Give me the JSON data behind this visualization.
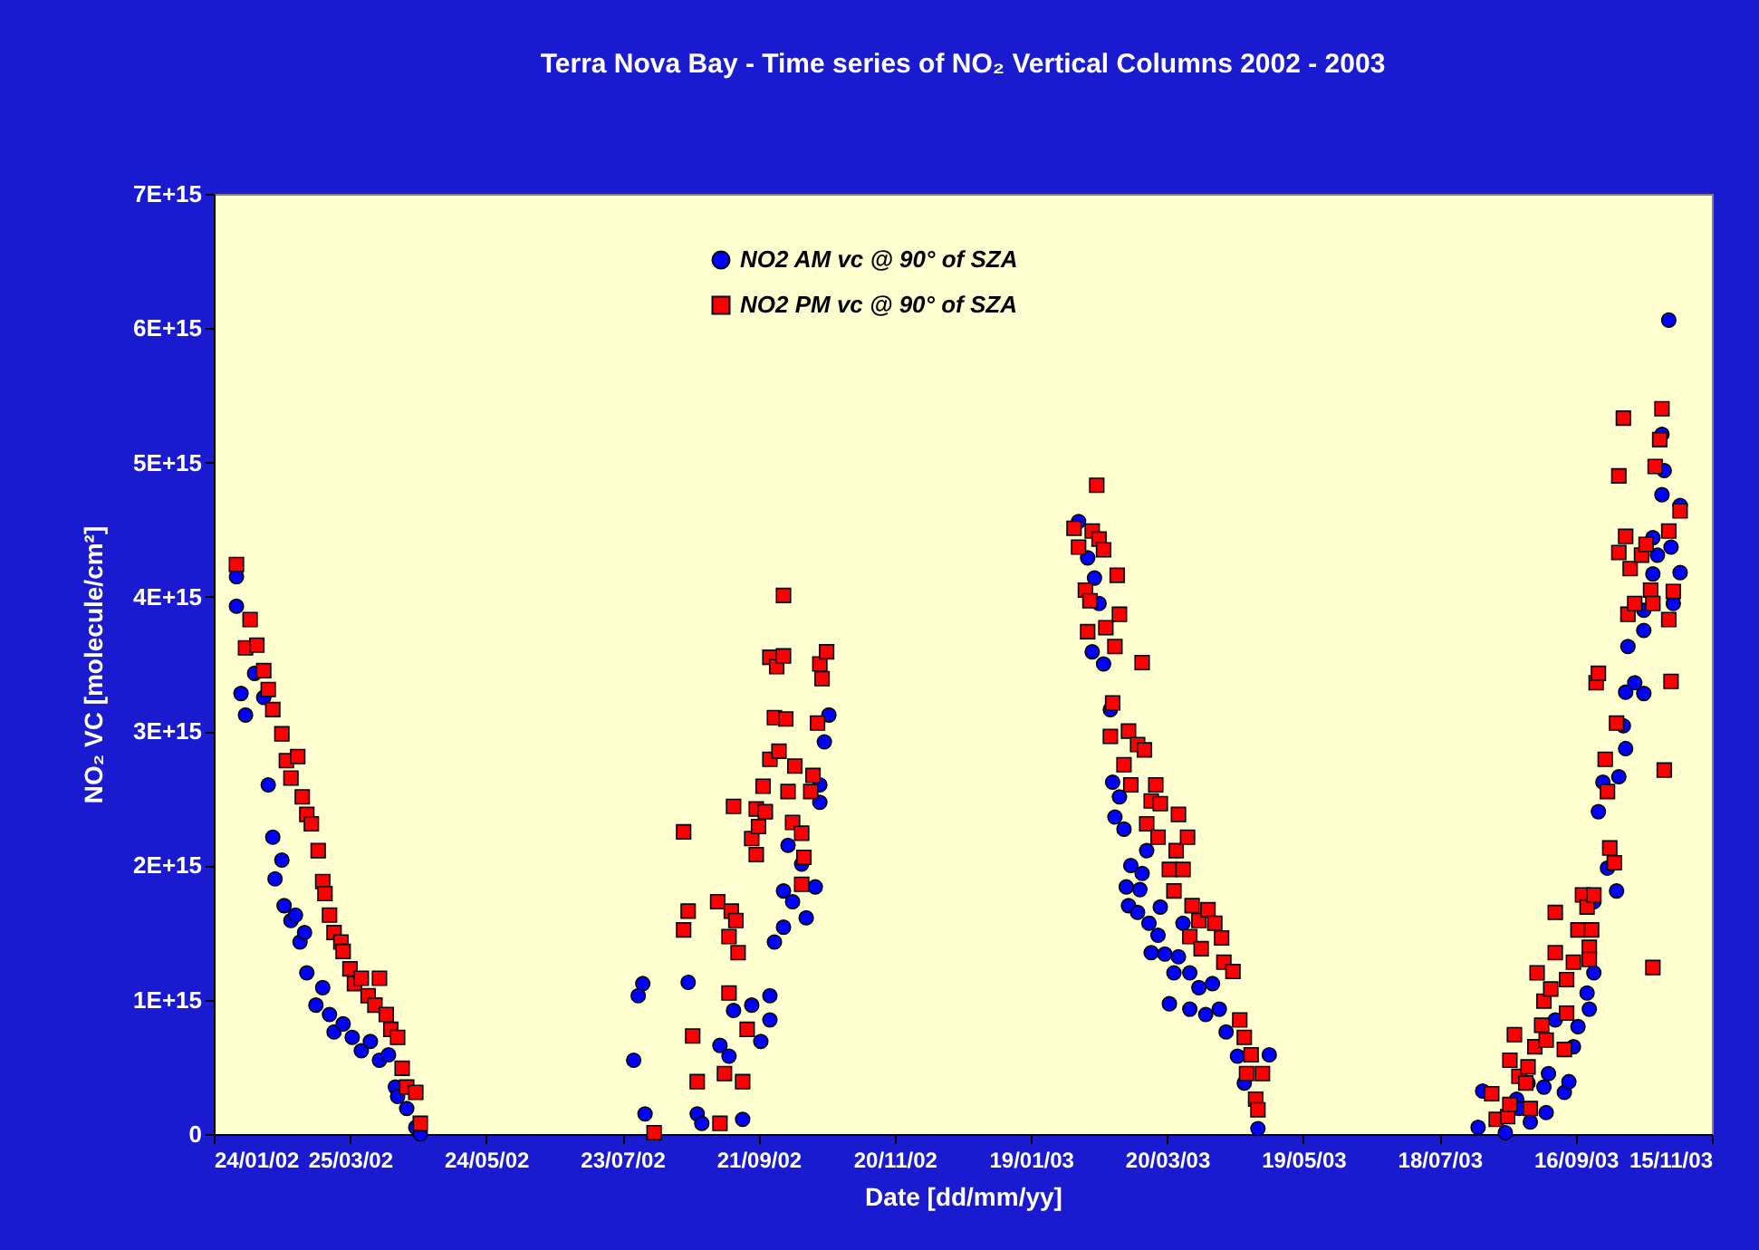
{
  "chart_data": {
    "type": "scatter",
    "title": "Terra Nova Bay - Time series of NO₂ Vertical Columns 2002 - 2003",
    "xlabel": "Date [dd/mm/yy]",
    "ylabel": "NO₂ VC [molecule/cm²]",
    "xlim": [
      "2002-01-24",
      "2003-11-15"
    ],
    "xticks": [
      {
        "value": "2002-01-24",
        "label": "24/01/02"
      },
      {
        "value": "2002-03-25",
        "label": "25/03/02"
      },
      {
        "value": "2002-05-24",
        "label": "24/05/02"
      },
      {
        "value": "2002-07-23",
        "label": "23/07/02"
      },
      {
        "value": "2002-09-21",
        "label": "21/09/02"
      },
      {
        "value": "2002-11-20",
        "label": "20/11/02"
      },
      {
        "value": "2003-01-19",
        "label": "19/01/03"
      },
      {
        "value": "2003-03-20",
        "label": "20/03/03"
      },
      {
        "value": "2003-05-19",
        "label": "19/05/03"
      },
      {
        "value": "2003-07-18",
        "label": "18/07/03"
      },
      {
        "value": "2003-09-16",
        "label": "16/09/03"
      },
      {
        "value": "2003-11-15",
        "label": "15/11/03"
      }
    ],
    "ylim": [
      0,
      7000000000000000.0
    ],
    "yticks": [
      {
        "value": 0,
        "label": "0"
      },
      {
        "value": 1000000000000000.0,
        "label": "1E+15"
      },
      {
        "value": 2000000000000000.0,
        "label": "2E+15"
      },
      {
        "value": 3000000000000000.0,
        "label": "3E+15"
      },
      {
        "value": 4000000000000000.0,
        "label": "4E+15"
      },
      {
        "value": 5000000000000000.0,
        "label": "5E+15"
      },
      {
        "value": 6000000000000000.0,
        "label": "6E+15"
      },
      {
        "value": 7000000000000000.0,
        "label": "7E+15"
      }
    ],
    "grid": false,
    "legend": "top",
    "series": [
      {
        "name": "NO2 AM vc @ 90° of SZA",
        "color": "#0000ff",
        "marker": "circle",
        "x": [
          "2002-02-03",
          "2002-02-03",
          "2002-02-05",
          "2002-02-07",
          "2002-02-11",
          "2002-02-15",
          "2002-02-17",
          "2002-02-19",
          "2002-02-20",
          "2002-02-23",
          "2002-02-24",
          "2002-02-27",
          "2002-03-01",
          "2002-03-03",
          "2002-03-05",
          "2002-03-06",
          "2002-03-10",
          "2002-03-13",
          "2002-03-16",
          "2002-03-18",
          "2002-03-22",
          "2002-03-26",
          "2002-03-30",
          "2002-04-03",
          "2002-04-07",
          "2002-04-11",
          "2002-04-14",
          "2002-04-15",
          "2002-04-19",
          "2002-04-23",
          "2002-04-25",
          "2002-07-28",
          "2002-08-01",
          "2002-07-30",
          "2002-08-02",
          "2002-08-21",
          "2002-08-25",
          "2002-08-27",
          "2002-09-04",
          "2002-09-08",
          "2002-09-10",
          "2002-09-14",
          "2002-09-18",
          "2002-09-22",
          "2002-09-26",
          "2002-09-26",
          "2002-09-28",
          "2002-10-02",
          "2002-10-02",
          "2002-10-04",
          "2002-10-06",
          "2002-10-10",
          "2002-10-12",
          "2002-10-16",
          "2002-10-18",
          "2002-10-18",
          "2002-10-20",
          "2002-10-22",
          "2003-02-09",
          "2003-02-13",
          "2003-02-15",
          "2003-02-16",
          "2003-02-18",
          "2003-02-20",
          "2003-02-23",
          "2003-02-24",
          "2003-02-25",
          "2003-02-27",
          "2003-03-01",
          "2003-03-02",
          "2003-03-03",
          "2003-03-04",
          "2003-03-07",
          "2003-03-08",
          "2003-03-09",
          "2003-03-11",
          "2003-03-12",
          "2003-03-13",
          "2003-03-16",
          "2003-03-17",
          "2003-03-19",
          "2003-03-21",
          "2003-03-23",
          "2003-03-25",
          "2003-03-27",
          "2003-03-30",
          "2003-03-30",
          "2003-04-03",
          "2003-04-06",
          "2003-04-09",
          "2003-04-12",
          "2003-04-15",
          "2003-04-20",
          "2003-04-23",
          "2003-04-29",
          "2003-05-04",
          "2003-08-04",
          "2003-08-06",
          "2003-08-16",
          "2003-08-21",
          "2003-08-22",
          "2003-08-26",
          "2003-08-27",
          "2003-09-02",
          "2003-09-03",
          "2003-09-04",
          "2003-09-07",
          "2003-09-11",
          "2003-09-13",
          "2003-09-15",
          "2003-09-17",
          "2003-09-21",
          "2003-09-22",
          "2003-09-24",
          "2003-09-24",
          "2003-09-26",
          "2003-09-28",
          "2003-09-30",
          "2003-10-04",
          "2003-10-05",
          "2003-10-07",
          "2003-10-08",
          "2003-10-08",
          "2003-10-09",
          "2003-10-12",
          "2003-10-16",
          "2003-10-16",
          "2003-10-16",
          "2003-10-20",
          "2003-10-20",
          "2003-10-22",
          "2003-10-24",
          "2003-10-24",
          "2003-10-25",
          "2003-10-27",
          "2003-10-28",
          "2003-10-29",
          "2003-11-01",
          "2003-11-01"
        ],
        "values": [
          3930000000000000.0,
          4150000000000000.0,
          3280000000000000.0,
          3120000000000000.0,
          3430000000000000.0,
          3250000000000000.0,
          2600000000000000.0,
          2210000000000000.0,
          1900000000000000.0,
          2040000000000000.0,
          1700000000000000.0,
          1590000000000000.0,
          1630000000000000.0,
          1430000000000000.0,
          1500000000000000.0,
          1200000000000000.0,
          960000000000000.0,
          1090000000000000.0,
          890000000000000.0,
          760000000000000.0,
          820000000000000.0,
          720000000000000.0,
          620000000000000.0,
          690000000000000.0,
          550000000000000.0,
          590000000000000.0,
          350000000000000.0,
          280000000000000.0,
          190000000000000.0,
          50000000000000.0,
          0,
          550000000000000.0,
          1120000000000000.0,
          1030000000000000.0,
          150000000000000.0,
          1130000000000000.0,
          150000000000000.0,
          80000000000000.0,
          660000000000000.0,
          580000000000000.0,
          920000000000000.0,
          110000000000000.0,
          960000000000000.0,
          690000000000000.0,
          850000000000000.0,
          1030000000000000.0,
          1430000000000000.0,
          1540000000000000.0,
          1810000000000000.0,
          2150000000000000.0,
          1730000000000000.0,
          2010000000000000.0,
          1610000000000000.0,
          1840000000000000.0,
          2470000000000000.0,
          2600000000000000.0,
          2920000000000000.0,
          3120000000000000.0,
          4560000000000000.0,
          4290000000000000.0,
          3590000000000000.0,
          4140000000000000.0,
          3950000000000000.0,
          3500000000000000.0,
          3160000000000000.0,
          2620000000000000.0,
          2360000000000000.0,
          2510000000000000.0,
          2270000000000000.0,
          1840000000000000.0,
          1700000000000000.0,
          2000000000000000.0,
          1650000000000000.0,
          1820000000000000.0,
          1940000000000000.0,
          2110000000000000.0,
          1570000000000000.0,
          1350000000000000.0,
          1480000000000000.0,
          1690000000000000.0,
          1340000000000000.0,
          970000000000000.0,
          1200000000000000.0,
          1320000000000000.0,
          1570000000000000.0,
          1200000000000000.0,
          930000000000000.0,
          1090000000000000.0,
          890000000000000.0,
          1120000000000000.0,
          930000000000000.0,
          760000000000000.0,
          580000000000000.0,
          380000000000000.0,
          40000000000000.0,
          590000000000000.0,
          50000000000000.0,
          320000000000000.0,
          10000000000000.0,
          260000000000000.0,
          190000000000000.0,
          380000000000000.0,
          90000000000000.0,
          350000000000000.0,
          160000000000000.0,
          450000000000000.0,
          850000000000000.0,
          310000000000000.0,
          390000000000000.0,
          650000000000000.0,
          800000000000000.0,
          1050000000000000.0,
          930000000000000.0,
          1200000000000000.0,
          1730000000000000.0,
          2400000000000000.0,
          2620000000000000.0,
          1980000000000000.0,
          1810000000000000.0,
          2660000000000000.0,
          3040000000000000.0,
          2870000000000000.0,
          3290000000000000.0,
          3630000000000000.0,
          3360000000000000.0,
          3900000000000000.0,
          3750000000000000.0,
          3280000000000000.0,
          4170000000000000.0,
          4440000000000000.0,
          4310000000000000.0,
          5210000000000000.0,
          4760000000000000.0,
          4940000000000000.0,
          6060000000000000.0,
          4370000000000000.0,
          3950000000000000.0,
          4180000000000000.0,
          4680000000000000.0
        ]
      },
      {
        "name": "NO2 PM vc @ 90° of SZA",
        "color": "#ff0000",
        "marker": "square",
        "x": [
          "2002-02-03",
          "2002-02-07",
          "2002-02-09",
          "2002-02-12",
          "2002-02-15",
          "2002-02-17",
          "2002-02-19",
          "2002-02-23",
          "2002-02-25",
          "2002-02-27",
          "2002-03-02",
          "2002-03-04",
          "2002-03-06",
          "2002-03-08",
          "2002-03-11",
          "2002-03-13",
          "2002-03-14",
          "2002-03-16",
          "2002-03-18",
          "2002-03-21",
          "2002-03-22",
          "2002-03-25",
          "2002-03-27",
          "2002-03-30",
          "2002-04-02",
          "2002-04-05",
          "2002-04-07",
          "2002-04-10",
          "2002-04-12",
          "2002-04-15",
          "2002-04-17",
          "2002-04-19",
          "2002-04-23",
          "2002-04-25",
          "2002-08-06",
          "2002-08-19",
          "2002-08-19",
          "2002-08-21",
          "2002-08-23",
          "2002-08-25",
          "2002-09-03",
          "2002-09-04",
          "2002-09-06",
          "2002-09-08",
          "2002-09-08",
          "2002-09-09",
          "2002-09-10",
          "2002-09-11",
          "2002-09-12",
          "2002-09-14",
          "2002-09-16",
          "2002-09-18",
          "2002-09-20",
          "2002-09-20",
          "2002-09-21",
          "2002-09-23",
          "2002-09-24",
          "2002-09-26",
          "2002-09-26",
          "2002-09-28",
          "2002-09-29",
          "2002-09-30",
          "2002-10-02",
          "2002-10-02",
          "2002-10-03",
          "2002-10-04",
          "2002-10-06",
          "2002-10-07",
          "2002-10-10",
          "2002-10-10",
          "2002-10-11",
          "2002-10-14",
          "2002-10-15",
          "2002-10-17",
          "2002-10-18",
          "2002-10-19",
          "2002-10-21",
          "2003-02-07",
          "2003-02-09",
          "2003-02-12",
          "2003-02-13",
          "2003-02-14",
          "2003-02-15",
          "2003-02-17",
          "2003-02-18",
          "2003-02-20",
          "2003-02-21",
          "2003-02-23",
          "2003-02-24",
          "2003-02-25",
          "2003-02-26",
          "2003-02-27",
          "2003-03-01",
          "2003-03-03",
          "2003-03-04",
          "2003-03-07",
          "2003-03-09",
          "2003-03-10",
          "2003-03-11",
          "2003-03-13",
          "2003-03-15",
          "2003-03-16",
          "2003-03-17",
          "2003-03-21",
          "2003-03-23",
          "2003-03-24",
          "2003-03-25",
          "2003-03-27",
          "2003-03-29",
          "2003-03-30",
          "2003-03-31",
          "2003-04-03",
          "2003-04-04",
          "2003-04-07",
          "2003-04-10",
          "2003-04-13",
          "2003-04-14",
          "2003-04-18",
          "2003-04-21",
          "2003-04-23",
          "2003-04-24",
          "2003-04-26",
          "2003-04-28",
          "2003-04-29",
          "2003-05-01",
          "2003-08-10",
          "2003-08-12",
          "2003-08-17",
          "2003-08-18",
          "2003-08-18",
          "2003-08-20",
          "2003-08-22",
          "2003-08-25",
          "2003-08-26",
          "2003-08-27",
          "2003-08-29",
          "2003-08-30",
          "2003-09-01",
          "2003-09-02",
          "2003-09-03",
          "2003-09-05",
          "2003-09-07",
          "2003-09-07",
          "2003-09-11",
          "2003-09-12",
          "2003-09-12",
          "2003-09-15",
          "2003-09-17",
          "2003-09-19",
          "2003-09-21",
          "2003-09-22",
          "2003-09-22",
          "2003-09-23",
          "2003-09-24",
          "2003-09-25",
          "2003-09-26",
          "2003-09-29",
          "2003-09-30",
          "2003-10-01",
          "2003-10-03",
          "2003-10-04",
          "2003-10-05",
          "2003-10-05",
          "2003-10-07",
          "2003-10-08",
          "2003-10-09",
          "2003-10-10",
          "2003-10-12",
          "2003-10-15",
          "2003-10-17",
          "2003-10-19",
          "2003-10-20",
          "2003-10-20",
          "2003-10-21",
          "2003-10-23",
          "2003-10-24",
          "2003-10-25",
          "2003-10-27",
          "2003-10-27",
          "2003-10-28",
          "2003-10-29",
          "2003-11-01"
        ],
        "values": [
          4240000000000000.0,
          3620000000000000.0,
          3830000000000000.0,
          3640000000000000.0,
          3450000000000000.0,
          3310000000000000.0,
          3160000000000000.0,
          2980000000000000.0,
          2780000000000000.0,
          2650000000000000.0,
          2810000000000000.0,
          2510000000000000.0,
          2380000000000000.0,
          2310000000000000.0,
          2110000000000000.0,
          1880000000000000.0,
          1790000000000000.0,
          1630000000000000.0,
          1500000000000000.0,
          1430000000000000.0,
          1360000000000000.0,
          1230000000000000.0,
          1120000000000000.0,
          1160000000000000.0,
          1030000000000000.0,
          960000000000000.0,
          1160000000000000.0,
          890000000000000.0,
          780000000000000.0,
          720000000000000.0,
          490000000000000.0,
          350000000000000.0,
          310000000000000.0,
          80000000000000.0,
          10000000000000.0,
          2250000000000000.0,
          1520000000000000.0,
          1660000000000000.0,
          730000000000000.0,
          390000000000000.0,
          1730000000000000.0,
          80000000000000.0,
          450000000000000.0,
          1050000000000000.0,
          1470000000000000.0,
          1660000000000000.0,
          2440000000000000.0,
          1590000000000000.0,
          1350000000000000.0,
          390000000000000.0,
          780000000000000.0,
          2200000000000000.0,
          2080000000000000.0,
          2420000000000000.0,
          2290000000000000.0,
          2590000000000000.0,
          2400000000000000.0,
          3550000000000000.0,
          2790000000000000.0,
          3100000000000000.0,
          3480000000000000.0,
          2850000000000000.0,
          4010000000000000.0,
          3560000000000000.0,
          3090000000000000.0,
          2550000000000000.0,
          2320000000000000.0,
          2740000000000000.0,
          2240000000000000.0,
          1860000000000000.0,
          2060000000000000.0,
          2550000000000000.0,
          2670000000000000.0,
          3060000000000000.0,
          3500000000000000.0,
          3390000000000000.0,
          3590000000000000.0,
          4510000000000000.0,
          4370000000000000.0,
          4050000000000000.0,
          3740000000000000.0,
          3970000000000000.0,
          4490000000000000.0,
          4830000000000000.0,
          4430000000000000.0,
          4350000000000000.0,
          3770000000000000.0,
          2960000000000000.0,
          3210000000000000.0,
          3630000000000000.0,
          4160000000000000.0,
          3870000000000000.0,
          2750000000000000.0,
          3000000000000000.0,
          2600000000000000.0,
          2900000000000000.0,
          3510000000000000.0,
          2860000000000000.0,
          2310000000000000.0,
          2480000000000000.0,
          2600000000000000.0,
          2210000000000000.0,
          2460000000000000.0,
          1970000000000000.0,
          1810000000000000.0,
          2110000000000000.0,
          2380000000000000.0,
          1970000000000000.0,
          2210000000000000.0,
          1470000000000000.0,
          1700000000000000.0,
          1590000000000000.0,
          1380000000000000.0,
          1670000000000000.0,
          1570000000000000.0,
          1460000000000000.0,
          1280000000000000.0,
          1210000000000000.0,
          850000000000000.0,
          720000000000000.0,
          450000000000000.0,
          590000000000000.0,
          260000000000000.0,
          180000000000000.0,
          450000000000000.0,
          300000000000000.0,
          110000000000000.0,
          130000000000000.0,
          550000000000000.0,
          220000000000000.0,
          740000000000000.0,
          430000000000000.0,
          380000000000000.0,
          500000000000000.0,
          190000000000000.0,
          650000000000000.0,
          1200000000000000.0,
          810000000000000.0,
          990000000000000.0,
          700000000000000.0,
          1080000000000000.0,
          1650000000000000.0,
          1350000000000000.0,
          630000000000000.0,
          1150000000000000.0,
          900000000000000.0,
          1280000000000000.0,
          1520000000000000.0,
          1780000000000000.0,
          1690000000000000.0,
          1390000000000000.0,
          1300000000000000.0,
          1520000000000000.0,
          1780000000000000.0,
          3360000000000000.0,
          3430000000000000.0,
          2790000000000000.0,
          2550000000000000.0,
          2130000000000000.0,
          2020000000000000.0,
          3060000000000000.0,
          4330000000000000.0,
          4900000000000000.0,
          5330000000000000.0,
          4450000000000000.0,
          3870000000000000.0,
          4210000000000000.0,
          3950000000000000.0,
          4310000000000000.0,
          4390000000000000.0,
          4050000000000000.0,
          3950000000000000.0,
          1240000000000000.0,
          4970000000000000.0,
          5170000000000000.0,
          5400000000000000.0,
          2710000000000000.0,
          4490000000000000.0,
          3830000000000000.0,
          3370000000000000.0,
          4040000000000000.0,
          4640000000000000.0
        ]
      }
    ]
  }
}
